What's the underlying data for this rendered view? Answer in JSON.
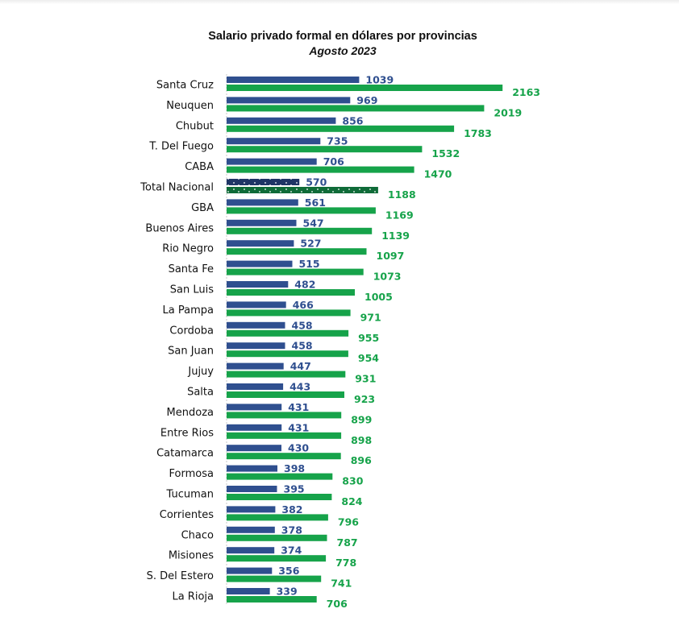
{
  "chart_data": {
    "type": "bar",
    "orientation": "horizontal",
    "title": "Salario privado formal en dólares por provincias",
    "subtitle": "Agosto 2023",
    "xlabel": "",
    "ylabel": "",
    "xlim": [
      0,
      2200
    ],
    "grid": false,
    "legend": "none",
    "highlight_category": "Total Nacional",
    "categories": [
      "Santa Cruz",
      "Neuquen",
      "Chubut",
      "T. Del Fuego",
      "CABA",
      "Total Nacional",
      "GBA",
      "Buenos Aires",
      "Rio Negro",
      "Santa Fe",
      "San Luis",
      "La Pampa",
      "Cordoba",
      "San Juan",
      "Jujuy",
      "Salta",
      "Mendoza",
      "Entre Rios",
      "Catamarca",
      "Formosa",
      "Tucuman",
      "Corrientes",
      "Chaco",
      "Misiones",
      "S. Del Estero",
      "La Rioja"
    ],
    "series": [
      {
        "name": "Serie azul",
        "color": "#2f4f8f",
        "highlight_color": "#1f3566",
        "values": [
          1039,
          969,
          856,
          735,
          706,
          570,
          561,
          547,
          527,
          515,
          482,
          466,
          458,
          458,
          447,
          443,
          431,
          431,
          430,
          398,
          395,
          382,
          378,
          374,
          356,
          339
        ]
      },
      {
        "name": "Serie verde",
        "color": "#16a34a",
        "highlight_color": "#0f6b38",
        "values": [
          2163,
          2019,
          1783,
          1532,
          1470,
          1188,
          1169,
          1139,
          1097,
          1073,
          1005,
          971,
          955,
          954,
          931,
          923,
          899,
          898,
          896,
          830,
          824,
          796,
          787,
          778,
          741,
          706
        ]
      }
    ]
  }
}
